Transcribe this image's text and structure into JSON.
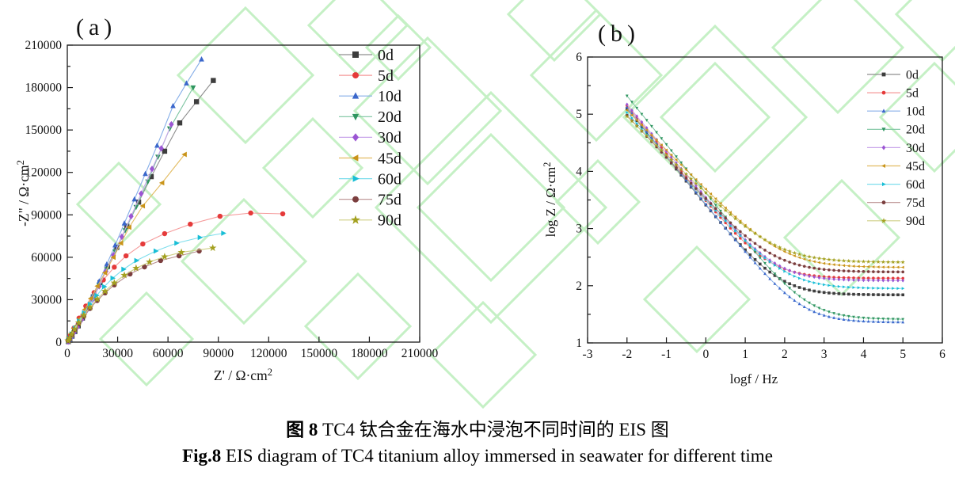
{
  "figure": {
    "background": "#ffffff",
    "watermark": {
      "color": "#c5f0c5",
      "shape": "diamond-outline-pattern"
    },
    "caption": {
      "zh_bold": "图 8",
      "zh_rest": " TC4 钛合金在海水中浸泡不同时间的 EIS 图",
      "en_bold": "Fig.8",
      "en_rest": " EIS diagram of TC4 titanium alloy immersed in seawater for different time"
    }
  },
  "chart_data": [
    {
      "id": "nyquist",
      "panel_label": "(a)",
      "type": "scatter",
      "xlabel": "Z' / Ω·cm",
      "xlabel_sup": "2",
      "ylabel": "-Z\" / Ω·cm",
      "ylabel_sup": "2",
      "xlim": [
        0,
        210000
      ],
      "ylim": [
        0,
        210000
      ],
      "xticks": [
        0,
        30000,
        60000,
        90000,
        120000,
        150000,
        180000,
        210000
      ],
      "yticks": [
        0,
        30000,
        60000,
        90000,
        120000,
        150000,
        180000,
        210000
      ],
      "grid": false,
      "legend_position": "inside-top-right",
      "series": [
        {
          "name": "0d",
          "marker": "square",
          "marker_color": "#3d3d3d",
          "line_color": "#8f8f8f",
          "points": [
            [
              600,
              400
            ],
            [
              1500,
              1800
            ],
            [
              2800,
              4200
            ],
            [
              4500,
              7500
            ],
            [
              6500,
              11500
            ],
            [
              9000,
              17000
            ],
            [
              12000,
              24000
            ],
            [
              15500,
              32000
            ],
            [
              19500,
              42000
            ],
            [
              24000,
              53500
            ],
            [
              29500,
              67000
            ],
            [
              35500,
              82000
            ],
            [
              42500,
              99000
            ],
            [
              50000,
              117000
            ],
            [
              58000,
              135000
            ],
            [
              67000,
              155000
            ],
            [
              77000,
              170000
            ],
            [
              87000,
              185000
            ]
          ]
        },
        {
          "name": "5d",
          "marker": "circle",
          "marker_color": "#e53a3a",
          "line_color": "#f59a9a",
          "points": [
            [
              700,
              1800
            ],
            [
              1800,
              4600
            ],
            [
              4000,
              10000
            ],
            [
              7000,
              17000
            ],
            [
              11000,
              25500
            ],
            [
              16000,
              35000
            ],
            [
              21500,
              44000
            ],
            [
              28000,
              53000
            ],
            [
              35000,
              61000
            ],
            [
              45000,
              69400
            ],
            [
              58000,
              76700
            ],
            [
              73300,
              83400
            ],
            [
              91000,
              89000
            ],
            [
              109300,
              91300
            ],
            [
              128400,
              90700
            ]
          ]
        },
        {
          "name": "10d",
          "marker": "triangle-up",
          "marker_color": "#3b67cb",
          "line_color": "#85aee8",
          "points": [
            [
              500,
              400
            ],
            [
              1300,
              1700
            ],
            [
              2500,
              4000
            ],
            [
              4000,
              7200
            ],
            [
              6000,
              11500
            ],
            [
              8500,
              17000
            ],
            [
              11500,
              24000
            ],
            [
              15000,
              32500
            ],
            [
              19000,
              43000
            ],
            [
              23500,
              55000
            ],
            [
              28500,
              68500
            ],
            [
              34000,
              84000
            ],
            [
              40000,
              101000
            ],
            [
              46500,
              119000
            ],
            [
              53500,
              139000
            ],
            [
              63000,
              167000
            ],
            [
              71000,
              183000
            ],
            [
              80000,
              200000
            ]
          ]
        },
        {
          "name": "20d",
          "marker": "triangle-down",
          "marker_color": "#2f9560",
          "line_color": "#7cc4a0",
          "points": [
            [
              500,
              350
            ],
            [
              1300,
              1600
            ],
            [
              2500,
              3800
            ],
            [
              4000,
              6800
            ],
            [
              6000,
              10800
            ],
            [
              8500,
              16000
            ],
            [
              11500,
              22500
            ],
            [
              15000,
              30500
            ],
            [
              19000,
              40000
            ],
            [
              23500,
              51500
            ],
            [
              28500,
              64000
            ],
            [
              34500,
              79000
            ],
            [
              41000,
              95500
            ],
            [
              48000,
              113500
            ],
            [
              54000,
              131000
            ],
            [
              61000,
              151000
            ],
            [
              75000,
              180000
            ]
          ]
        },
        {
          "name": "30d",
          "marker": "diamond",
          "marker_color": "#9b55d3",
          "line_color": "#c9a6ea",
          "points": [
            [
              500,
              350
            ],
            [
              1300,
              1600
            ],
            [
              2500,
              3800
            ],
            [
              4000,
              6800
            ],
            [
              6000,
              10700
            ],
            [
              8500,
              15800
            ],
            [
              11500,
              22300
            ],
            [
              15000,
              30000
            ],
            [
              19000,
              39500
            ],
            [
              23000,
              50000
            ],
            [
              27500,
              61500
            ],
            [
              32500,
              74500
            ],
            [
              38000,
              89000
            ],
            [
              44000,
              105000
            ],
            [
              50500,
              122500
            ],
            [
              56000,
              137000
            ],
            [
              62000,
              154000
            ]
          ]
        },
        {
          "name": "45d",
          "marker": "triangle-left",
          "marker_color": "#c9941a",
          "line_color": "#e2bc62",
          "points": [
            [
              500,
              1000
            ],
            [
              1500,
              3300
            ],
            [
              3000,
              6600
            ],
            [
              5000,
              11000
            ],
            [
              7500,
              16500
            ],
            [
              10500,
              23100
            ],
            [
              14000,
              30800
            ],
            [
              18000,
              39600
            ],
            [
              22500,
              49000
            ],
            [
              27500,
              60000
            ],
            [
              32000,
              70000
            ],
            [
              36900,
              81200
            ],
            [
              45000,
              96300
            ],
            [
              56500,
              112600
            ],
            [
              69900,
              132700
            ]
          ]
        },
        {
          "name": "60d",
          "marker": "triangle-right",
          "marker_color": "#19bed6",
          "line_color": "#7edeec",
          "points": [
            [
              500,
              1100
            ],
            [
              1300,
              2900
            ],
            [
              2600,
              5800
            ],
            [
              4500,
              9900
            ],
            [
              7000,
              15000
            ],
            [
              10000,
              20700
            ],
            [
              13500,
              26800
            ],
            [
              17500,
              33000
            ],
            [
              22000,
              39200
            ],
            [
              27000,
              45200
            ],
            [
              33500,
              51500
            ],
            [
              41200,
              57700
            ],
            [
              52700,
              64400
            ],
            [
              65100,
              70000
            ],
            [
              79000,
              74000
            ],
            [
              93000,
              77000
            ]
          ]
        },
        {
          "name": "75d",
          "marker": "circle",
          "marker_color": "#7b3e3e",
          "line_color": "#b98f8f",
          "points": [
            [
              500,
              1000
            ],
            [
              1200,
              2600
            ],
            [
              2500,
              5300
            ],
            [
              4300,
              8800
            ],
            [
              6800,
              13200
            ],
            [
              9800,
              18200
            ],
            [
              13500,
              23800
            ],
            [
              17800,
              29400
            ],
            [
              22500,
              34800
            ],
            [
              28000,
              40500
            ],
            [
              37400,
              48200
            ],
            [
              46000,
              53200
            ],
            [
              55600,
              57700
            ],
            [
              66600,
              61000
            ],
            [
              78600,
              64400
            ]
          ]
        },
        {
          "name": "90d",
          "marker": "star",
          "marker_color": "#a3a01f",
          "line_color": "#cfcf85",
          "points": [
            [
              500,
              1050
            ],
            [
              1200,
              2700
            ],
            [
              2500,
              5500
            ],
            [
              4300,
              9100
            ],
            [
              6800,
              13700
            ],
            [
              9800,
              18900
            ],
            [
              13500,
              24600
            ],
            [
              17800,
              30400
            ],
            [
              22500,
              36000
            ],
            [
              28000,
              41900
            ],
            [
              34000,
              47300
            ],
            [
              41000,
              52300
            ],
            [
              49000,
              56700
            ],
            [
              58000,
              60400
            ],
            [
              68000,
              63500
            ],
            [
              86700,
              66600
            ]
          ]
        }
      ]
    },
    {
      "id": "bode",
      "panel_label": "(b)",
      "type": "line",
      "xlabel": "logf / Hz",
      "ylabel": "log Z / Ω·cm",
      "ylabel_sup": "2",
      "xlim": [
        -3,
        6
      ],
      "ylim": [
        1,
        6
      ],
      "xticks": [
        -3,
        -2,
        -1,
        0,
        1,
        2,
        3,
        4,
        5,
        6
      ],
      "yticks": [
        1,
        2,
        3,
        4,
        5,
        6
      ],
      "grid": false,
      "legend_position": "inside-top-right",
      "x_data_range": [
        -2,
        5
      ],
      "sample_step": 0.125,
      "series": [
        {
          "name": "0d",
          "marker": "square",
          "marker_color": "#3d3d3d",
          "line_color": "#8f8f8f",
          "logZ_at_logf_minus2": 5.1,
          "slope_per_decade": 0.85,
          "hf_plateau": 1.84
        },
        {
          "name": "5d",
          "marker": "circle",
          "marker_color": "#e53a3a",
          "line_color": "#f59a9a",
          "logZ_at_logf_minus2": 5.15,
          "slope_per_decade": 0.84,
          "hf_plateau": 2.13
        },
        {
          "name": "10d",
          "marker": "triangle-up",
          "marker_color": "#3b67cb",
          "line_color": "#85aee8",
          "logZ_at_logf_minus2": 5.12,
          "slope_per_decade": 0.85,
          "hf_plateau": 1.36
        },
        {
          "name": "20d",
          "marker": "triangle-down",
          "marker_color": "#2f9560",
          "line_color": "#7cc4a0",
          "logZ_at_logf_minus2": 5.32,
          "slope_per_decade": 0.85,
          "hf_plateau": 1.41
        },
        {
          "name": "30d",
          "marker": "diamond",
          "marker_color": "#9b55d3",
          "line_color": "#c9a6ea",
          "logZ_at_logf_minus2": 5.17,
          "slope_per_decade": 0.82,
          "hf_plateau": 2.09
        },
        {
          "name": "45d",
          "marker": "triangle-left",
          "marker_color": "#c9941a",
          "line_color": "#e2bc62",
          "logZ_at_logf_minus2": 5.07,
          "slope_per_decade": 0.7,
          "hf_plateau": 2.32
        },
        {
          "name": "60d",
          "marker": "triangle-right",
          "marker_color": "#19bed6",
          "line_color": "#7edeec",
          "logZ_at_logf_minus2": 5.03,
          "slope_per_decade": 0.77,
          "hf_plateau": 1.95
        },
        {
          "name": "75d",
          "marker": "circle",
          "marker_color": "#7b3e3e",
          "line_color": "#b98f8f",
          "logZ_at_logf_minus2": 4.98,
          "slope_per_decade": 0.74,
          "hf_plateau": 2.24
        },
        {
          "name": "90d",
          "marker": "star",
          "marker_color": "#a3a01f",
          "line_color": "#cfcf85",
          "logZ_at_logf_minus2": 4.96,
          "slope_per_decade": 0.68,
          "hf_plateau": 2.41
        }
      ]
    }
  ]
}
